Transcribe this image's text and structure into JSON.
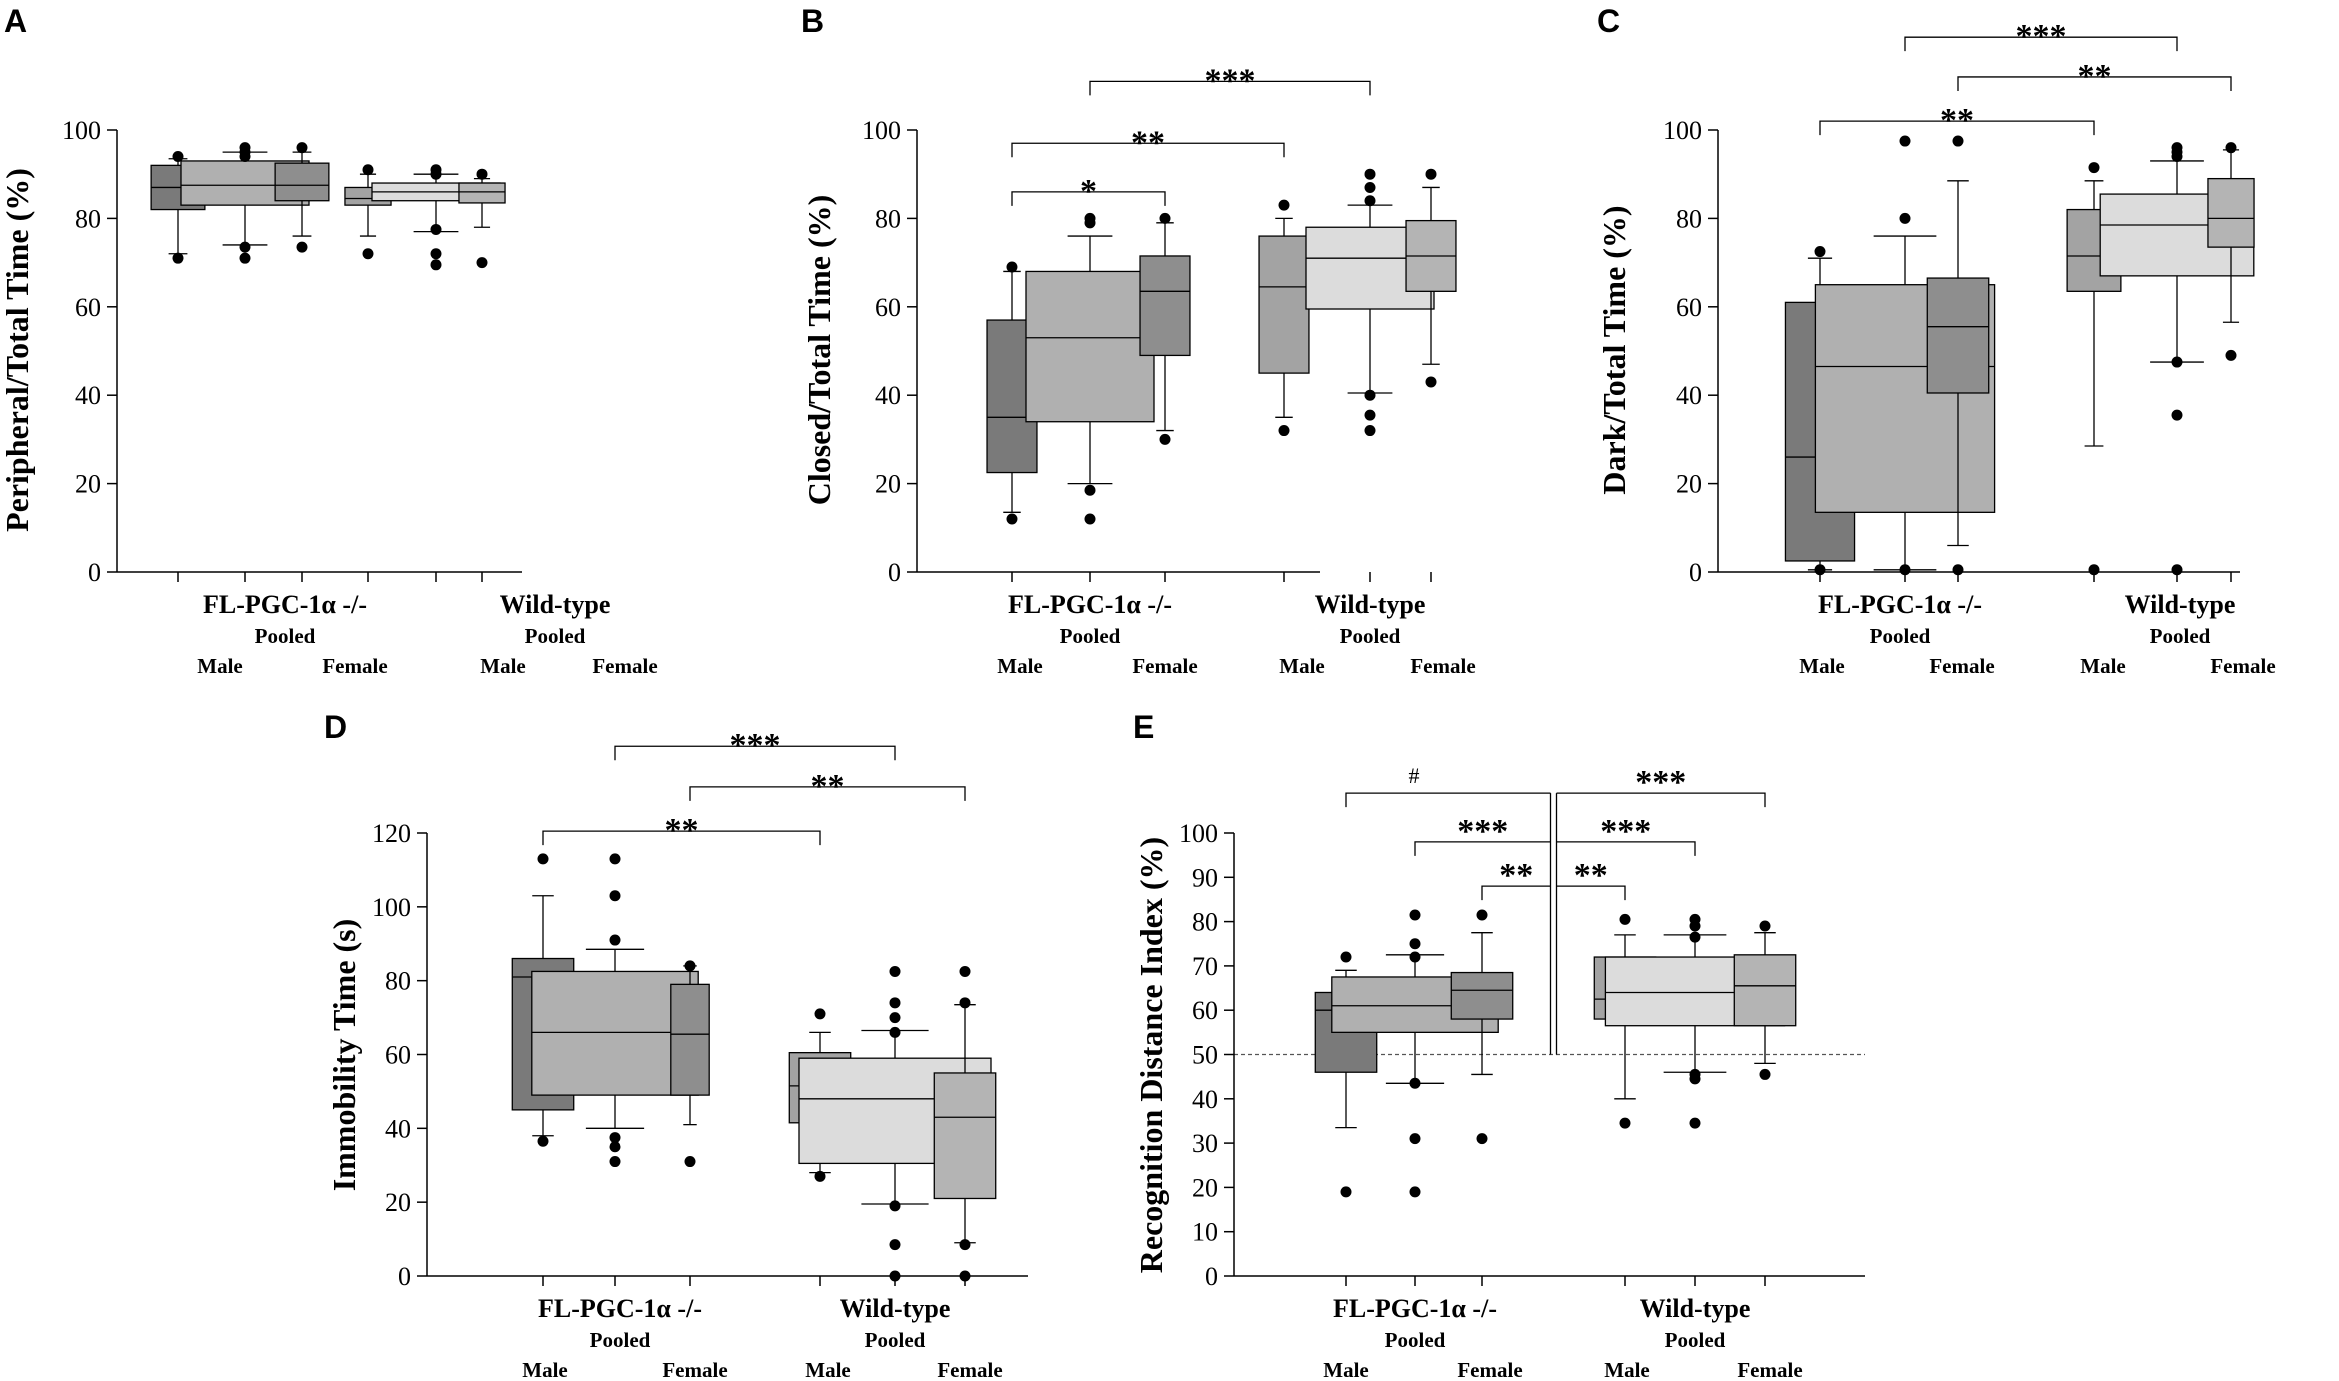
{
  "chart_data": [
    {
      "type": "boxplot",
      "panel": "A",
      "ylabel": "Peripheral/Total Time (%)",
      "ylim": [
        0,
        100
      ],
      "yticks": [
        0,
        20,
        40,
        60,
        80,
        100
      ],
      "groups": [
        {
          "name": "FL-PGC-1α -/-",
          "sub": "Pooled"
        },
        {
          "name": "Wild-type",
          "sub": "Pooled"
        }
      ],
      "sex_labels": [
        "Male",
        "Female"
      ],
      "boxes": [
        {
          "group": 0,
          "kind": "male",
          "shade": "#7a7a7a",
          "q1": 82,
          "med": 87,
          "q3": 92,
          "wlo": 72,
          "whi": 93.5,
          "outliers": [
            71,
            94
          ]
        },
        {
          "group": 0,
          "kind": "pooled",
          "shade": "#b0b0b0",
          "q1": 83,
          "med": 87.5,
          "q3": 93,
          "wlo": 74,
          "whi": 95,
          "outliers": [
            71,
            73.5,
            94,
            95,
            96
          ]
        },
        {
          "group": 0,
          "kind": "female",
          "shade": "#8e8e8e",
          "q1": 84,
          "med": 87.5,
          "q3": 92.5,
          "wlo": 76,
          "whi": 95,
          "outliers": [
            73.5,
            96
          ]
        },
        {
          "group": 1,
          "kind": "male",
          "shade": "#a3a3a3",
          "q1": 83,
          "med": 84.5,
          "q3": 87,
          "wlo": 76,
          "whi": 90,
          "outliers": [
            72,
            91
          ]
        },
        {
          "group": 1,
          "kind": "pooled",
          "shade": "#dcdcdc",
          "q1": 84,
          "med": 86,
          "q3": 88,
          "wlo": 77,
          "whi": 90,
          "outliers": [
            69.5,
            72,
            77.5,
            90,
            91
          ]
        },
        {
          "group": 1,
          "kind": "female",
          "shade": "#b4b4b4",
          "q1": 83.5,
          "med": 86,
          "q3": 88,
          "wlo": 78,
          "whi": 89,
          "outliers": [
            70,
            90
          ]
        }
      ],
      "significance": []
    },
    {
      "type": "boxplot",
      "panel": "B",
      "ylabel": "Closed/Total Time (%)",
      "ylim": [
        0,
        100
      ],
      "yticks": [
        0,
        20,
        40,
        60,
        80,
        100
      ],
      "groups": [
        {
          "name": "FL-PGC-1α -/-",
          "sub": "Pooled"
        },
        {
          "name": "Wild-type",
          "sub": "Pooled"
        }
      ],
      "sex_labels": [
        "Male",
        "Female"
      ],
      "boxes": [
        {
          "group": 0,
          "kind": "male",
          "shade": "#7a7a7a",
          "q1": 22.5,
          "med": 35,
          "q3": 57,
          "wlo": 13.5,
          "whi": 68,
          "outliers": [
            12,
            69
          ]
        },
        {
          "group": 0,
          "kind": "pooled",
          "shade": "#b0b0b0",
          "q1": 34,
          "med": 53,
          "q3": 68,
          "wlo": 20,
          "whi": 76,
          "outliers": [
            12,
            18.5,
            79,
            80
          ]
        },
        {
          "group": 0,
          "kind": "female",
          "shade": "#8e8e8e",
          "q1": 49,
          "med": 63.5,
          "q3": 71.5,
          "wlo": 32,
          "whi": 79,
          "outliers": [
            30,
            80
          ]
        },
        {
          "group": 1,
          "kind": "male",
          "shade": "#a3a3a3",
          "q1": 45,
          "med": 64.5,
          "q3": 76,
          "wlo": 35,
          "whi": 80,
          "outliers": [
            32,
            83
          ]
        },
        {
          "group": 1,
          "kind": "pooled",
          "shade": "#dcdcdc",
          "q1": 59.5,
          "med": 71,
          "q3": 78,
          "wlo": 40.5,
          "whi": 83,
          "outliers": [
            32,
            35.5,
            40,
            84,
            87,
            90
          ]
        },
        {
          "group": 1,
          "kind": "female",
          "shade": "#b4b4b4",
          "q1": 63.5,
          "med": 71.5,
          "q3": 79.5,
          "wlo": 47,
          "whi": 87,
          "outliers": [
            43,
            90
          ]
        }
      ],
      "significance": [
        {
          "label": "***",
          "from": 1,
          "to": 4,
          "level": 111
        },
        {
          "label": "**",
          "from": 0,
          "to": 3,
          "level": 97
        },
        {
          "label": "*",
          "from": 0,
          "to": 2,
          "level": 86
        }
      ]
    },
    {
      "type": "boxplot",
      "panel": "C",
      "ylabel": "Dark/Total Time (%)",
      "ylim": [
        0,
        100
      ],
      "yticks": [
        0,
        20,
        40,
        60,
        80,
        100
      ],
      "groups": [
        {
          "name": "FL-PGC-1α -/-",
          "sub": "Pooled"
        },
        {
          "name": "Wild-type",
          "sub": "Pooled"
        }
      ],
      "sex_labels": [
        "Male",
        "Female"
      ],
      "boxes": [
        {
          "group": 0,
          "kind": "male",
          "shade": "#7a7a7a",
          "q1": 2.5,
          "med": 26,
          "q3": 61,
          "wlo": 0.5,
          "whi": 71,
          "outliers": [
            0.5,
            72.5
          ]
        },
        {
          "group": 0,
          "kind": "pooled",
          "shade": "#b0b0b0",
          "q1": 13.5,
          "med": 46.5,
          "q3": 65,
          "wlo": 0.5,
          "whi": 76,
          "outliers": [
            0.5,
            80,
            97.5
          ]
        },
        {
          "group": 0,
          "kind": "female",
          "shade": "#8e8e8e",
          "q1": 40.5,
          "med": 55.5,
          "q3": 66.5,
          "wlo": 6,
          "whi": 88.5,
          "outliers": [
            0.5,
            97.5
          ]
        },
        {
          "group": 1,
          "kind": "male",
          "shade": "#a3a3a3",
          "q1": 63.5,
          "med": 71.5,
          "q3": 82,
          "wlo": 28.5,
          "whi": 88.5,
          "outliers": [
            0.5,
            91.5
          ]
        },
        {
          "group": 1,
          "kind": "pooled",
          "shade": "#dcdcdc",
          "q1": 67,
          "med": 78.5,
          "q3": 85.5,
          "wlo": 47.5,
          "whi": 93,
          "outliers": [
            0.5,
            35.5,
            47.5,
            94,
            95,
            96
          ]
        },
        {
          "group": 1,
          "kind": "female",
          "shade": "#b4b4b4",
          "q1": 73.5,
          "med": 80,
          "q3": 89,
          "wlo": 56.5,
          "whi": 95.5,
          "outliers": [
            49,
            96
          ]
        }
      ],
      "significance": [
        {
          "label": "***",
          "from": 1,
          "to": 4,
          "level": 121
        },
        {
          "label": "**",
          "from": 2,
          "to": 5,
          "level": 112
        },
        {
          "label": "**",
          "from": 0,
          "to": 3,
          "level": 102
        }
      ]
    },
    {
      "type": "boxplot",
      "panel": "D",
      "ylabel": "Immobility Time (s)",
      "ylim": [
        0,
        120
      ],
      "yticks": [
        0,
        20,
        40,
        60,
        80,
        100,
        120
      ],
      "groups": [
        {
          "name": "FL-PGC-1α -/-",
          "sub": "Pooled"
        },
        {
          "name": "Wild-type",
          "sub": "Pooled"
        }
      ],
      "sex_labels": [
        "Male",
        "Female"
      ],
      "boxes": [
        {
          "group": 0,
          "kind": "male",
          "shade": "#7a7a7a",
          "q1": 45,
          "med": 81,
          "q3": 86,
          "wlo": 38,
          "whi": 103,
          "outliers": [
            36.5,
            113
          ]
        },
        {
          "group": 0,
          "kind": "pooled",
          "shade": "#b0b0b0",
          "q1": 49,
          "med": 66,
          "q3": 82.5,
          "wlo": 40,
          "whi": 88.5,
          "outliers": [
            31,
            35,
            37.5,
            91,
            103,
            113
          ]
        },
        {
          "group": 0,
          "kind": "female",
          "shade": "#8e8e8e",
          "q1": 49,
          "med": 65.5,
          "q3": 79,
          "wlo": 41,
          "whi": 84,
          "outliers": [
            31,
            84
          ]
        },
        {
          "group": 1,
          "kind": "male",
          "shade": "#a3a3a3",
          "q1": 41.5,
          "med": 51.5,
          "q3": 60.5,
          "wlo": 28,
          "whi": 66,
          "outliers": [
            27,
            71
          ]
        },
        {
          "group": 1,
          "kind": "pooled",
          "shade": "#dcdcdc",
          "q1": 30.5,
          "med": 48,
          "q3": 59,
          "wlo": 19.5,
          "whi": 66.5,
          "outliers": [
            0,
            8.5,
            19,
            66,
            70,
            74,
            82.5
          ]
        },
        {
          "group": 1,
          "kind": "female",
          "shade": "#b4b4b4",
          "q1": 21,
          "med": 43,
          "q3": 55,
          "wlo": 9,
          "whi": 73.5,
          "outliers": [
            0,
            8.5,
            74,
            82.5
          ]
        }
      ],
      "significance": [
        {
          "label": "***",
          "from": 1,
          "to": 4,
          "level": 143.5
        },
        {
          "label": "**",
          "from": 2,
          "to": 5,
          "level": 132.5
        },
        {
          "label": "**",
          "from": 0,
          "to": 3,
          "level": 120.5
        }
      ]
    },
    {
      "type": "boxplot",
      "panel": "E",
      "ylabel": "Recognition Distance Index (%)",
      "ylim": [
        0,
        100
      ],
      "yticks": [
        0,
        10,
        20,
        30,
        40,
        50,
        60,
        70,
        80,
        90,
        100
      ],
      "reference_line": 50,
      "groups": [
        {
          "name": "FL-PGC-1α -/-",
          "sub": "Pooled"
        },
        {
          "name": "Wild-type",
          "sub": "Pooled"
        }
      ],
      "sex_labels": [
        "Male",
        "Female"
      ],
      "boxes": [
        {
          "group": 0,
          "kind": "male",
          "shade": "#7a7a7a",
          "q1": 46,
          "med": 60,
          "q3": 64,
          "wlo": 33.5,
          "whi": 69,
          "outliers": [
            19,
            72
          ]
        },
        {
          "group": 0,
          "kind": "pooled",
          "shade": "#b0b0b0",
          "q1": 55,
          "med": 61,
          "q3": 67.5,
          "wlo": 43.5,
          "whi": 72.5,
          "outliers": [
            19,
            31,
            43.5,
            72,
            75,
            81.5
          ]
        },
        {
          "group": 0,
          "kind": "female",
          "shade": "#8e8e8e",
          "q1": 58,
          "med": 64.5,
          "q3": 68.5,
          "wlo": 45.5,
          "whi": 77.5,
          "outliers": [
            31,
            81.5
          ]
        },
        {
          "group": 1,
          "kind": "male",
          "shade": "#a3a3a3",
          "q1": 58,
          "med": 62.5,
          "q3": 72,
          "wlo": 40,
          "whi": 77,
          "outliers": [
            34.5,
            80.5
          ]
        },
        {
          "group": 1,
          "kind": "pooled",
          "shade": "#dcdcdc",
          "q1": 56.5,
          "med": 64,
          "q3": 72,
          "wlo": 46,
          "whi": 77,
          "outliers": [
            34.5,
            44.5,
            45.5,
            76.5,
            79,
            80.5
          ]
        },
        {
          "group": 1,
          "kind": "female",
          "shade": "#b4b4b4",
          "q1": 56.5,
          "med": 65.5,
          "q3": 72.5,
          "wlo": 48,
          "whi": 77.5,
          "outliers": [
            45.5,
            79
          ]
        }
      ],
      "divider": true,
      "significance": [
        {
          "label": "#",
          "from": 0,
          "to": 2,
          "level": 109,
          "style": "bracket-to-divider",
          "side": "left"
        },
        {
          "label": "***",
          "from": 1,
          "to": 2,
          "level": 98,
          "style": "bracket-to-divider",
          "side": "left"
        },
        {
          "label": "**",
          "from": 2,
          "to": 2,
          "level": 88,
          "style": "bracket-to-divider",
          "side": "left"
        },
        {
          "label": "***",
          "from": 5,
          "to": 5,
          "level": 109,
          "style": "bracket-to-divider",
          "side": "right"
        },
        {
          "label": "***",
          "from": 4,
          "to": 4,
          "level": 98,
          "style": "bracket-to-divider",
          "side": "right"
        },
        {
          "label": "**",
          "from": 3,
          "to": 3,
          "level": 88,
          "style": "bracket-to-divider",
          "side": "right"
        }
      ]
    }
  ]
}
